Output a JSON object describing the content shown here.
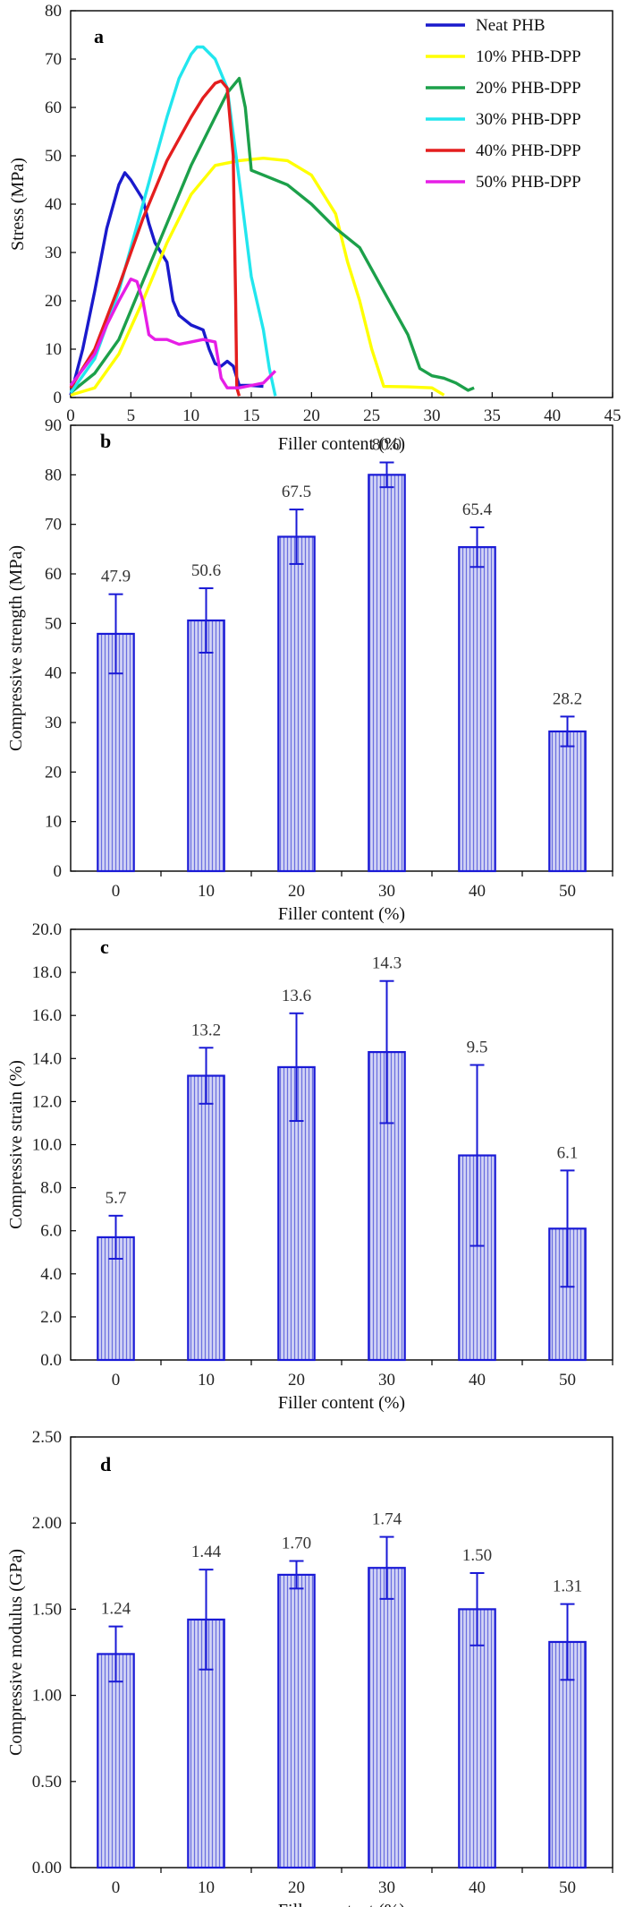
{
  "colors": {
    "bar_stroke": "#1a1ad6",
    "bar_fill": "#b9bdf0",
    "neat": "#1a1acc",
    "pct10": "#ffff00",
    "pct20": "#1ca04a",
    "pct30": "#22e6ee",
    "pct40": "#e41e1e",
    "pct50": "#e61ee6"
  },
  "chart_data": [
    {
      "type": "line",
      "panel": "a",
      "xlabel": "Filler content (%)",
      "ylabel": "Stress (MPa)",
      "xlim": [
        0,
        45
      ],
      "ylim": [
        0,
        80
      ],
      "xticks": [
        0,
        5,
        10,
        15,
        20,
        25,
        30,
        35,
        40,
        45
      ],
      "yticks": [
        0,
        10,
        20,
        30,
        40,
        50,
        60,
        70,
        80
      ],
      "legend_position": "top-right",
      "series": [
        {
          "name": "Neat PHB",
          "color": "#1a1acc",
          "points": [
            [
              0,
              0.5
            ],
            [
              1,
              10
            ],
            [
              2,
              22
            ],
            [
              3,
              35
            ],
            [
              4,
              44
            ],
            [
              4.5,
              46.5
            ],
            [
              5,
              45
            ],
            [
              6,
              41
            ],
            [
              6.5,
              36
            ],
            [
              7,
              32
            ],
            [
              8,
              28
            ],
            [
              8.5,
              20
            ],
            [
              9,
              17
            ],
            [
              10,
              15
            ],
            [
              11,
              14
            ],
            [
              11.5,
              10
            ],
            [
              12,
              7
            ],
            [
              12.5,
              6.5
            ],
            [
              13,
              7.5
            ],
            [
              13.5,
              6.5
            ],
            [
              14,
              2.5
            ],
            [
              15,
              2.5
            ],
            [
              16,
              2.3
            ]
          ]
        },
        {
          "name": "10% PHB-DPP",
          "color": "#ffff00",
          "points": [
            [
              0,
              0.5
            ],
            [
              2,
              2
            ],
            [
              4,
              9
            ],
            [
              6,
              20
            ],
            [
              8,
              32
            ],
            [
              10,
              42
            ],
            [
              12,
              48
            ],
            [
              14,
              49
            ],
            [
              16,
              49.5
            ],
            [
              18,
              49
            ],
            [
              20,
              46
            ],
            [
              22,
              38
            ],
            [
              23,
              28
            ],
            [
              24,
              20
            ],
            [
              25,
              10
            ],
            [
              26,
              2.3
            ],
            [
              28,
              2.2
            ],
            [
              30,
              2
            ],
            [
              31,
              0.5
            ]
          ]
        },
        {
          "name": "20% PHB-DPP",
          "color": "#1ca04a",
          "points": [
            [
              0,
              1
            ],
            [
              2,
              5
            ],
            [
              4,
              12
            ],
            [
              6,
              24
            ],
            [
              8,
              36
            ],
            [
              10,
              48
            ],
            [
              12,
              58
            ],
            [
              13,
              63
            ],
            [
              14,
              66
            ],
            [
              14.5,
              60
            ],
            [
              15,
              47
            ],
            [
              16,
              46
            ],
            [
              18,
              44
            ],
            [
              20,
              40
            ],
            [
              22,
              35
            ],
            [
              24,
              31
            ],
            [
              26,
              22
            ],
            [
              28,
              13
            ],
            [
              29,
              6
            ],
            [
              30,
              4.5
            ],
            [
              31,
              4
            ],
            [
              32,
              3
            ],
            [
              33,
              1.5
            ],
            [
              33.5,
              2
            ]
          ]
        },
        {
          "name": "30% PHB-DPP",
          "color": "#22e6ee",
          "points": [
            [
              0,
              1
            ],
            [
              2,
              8
            ],
            [
              4,
              22
            ],
            [
              6,
              40
            ],
            [
              8,
              58
            ],
            [
              9,
              66
            ],
            [
              10,
              71
            ],
            [
              10.5,
              72.5
            ],
            [
              11,
              72.5
            ],
            [
              12,
              70
            ],
            [
              13,
              64
            ],
            [
              14,
              45
            ],
            [
              15,
              25
            ],
            [
              16,
              14
            ],
            [
              16.5,
              6
            ],
            [
              17,
              0.3
            ]
          ]
        },
        {
          "name": "40% PHB-DPP",
          "color": "#e41e1e",
          "points": [
            [
              0,
              2
            ],
            [
              2,
              10
            ],
            [
              4,
              23
            ],
            [
              6,
              37
            ],
            [
              8,
              49
            ],
            [
              10,
              58
            ],
            [
              11,
              62
            ],
            [
              12,
              65
            ],
            [
              12.5,
              65.5
            ],
            [
              13,
              64
            ],
            [
              13.5,
              50
            ],
            [
              13.7,
              20
            ],
            [
              13.8,
              2
            ],
            [
              14,
              0.3
            ]
          ]
        },
        {
          "name": "50% PHB-DPP",
          "color": "#e61ee6",
          "points": [
            [
              0,
              2.5
            ],
            [
              2,
              9
            ],
            [
              3,
              15
            ],
            [
              4,
              20
            ],
            [
              5,
              24.5
            ],
            [
              5.5,
              24
            ],
            [
              6,
              20
            ],
            [
              6.5,
              13
            ],
            [
              7,
              12
            ],
            [
              8,
              12
            ],
            [
              9,
              11
            ],
            [
              10,
              11.5
            ],
            [
              11,
              12
            ],
            [
              12,
              11.5
            ],
            [
              12.5,
              4
            ],
            [
              13,
              2
            ],
            [
              14,
              2
            ],
            [
              15,
              2.5
            ],
            [
              16,
              3
            ],
            [
              17,
              5.5
            ]
          ]
        }
      ]
    },
    {
      "type": "bar",
      "panel": "b",
      "xlabel": "Filler content (%)",
      "ylabel": "Compressive strength (MPa)",
      "categories": [
        "0",
        "10",
        "20",
        "30",
        "40",
        "50"
      ],
      "values": [
        47.9,
        50.6,
        67.5,
        80.0,
        65.4,
        28.2
      ],
      "labels": [
        "47.9",
        "50.6",
        "67.5",
        "80.0",
        "65.4",
        "28.2"
      ],
      "errors": [
        8.0,
        6.5,
        5.5,
        2.5,
        4.0,
        3.0
      ],
      "ylim": [
        0,
        90
      ],
      "yticks": [
        "0",
        "10",
        "20",
        "30",
        "40",
        "50",
        "60",
        "70",
        "80",
        "90"
      ]
    },
    {
      "type": "bar",
      "panel": "c",
      "xlabel": "Filler content (%)",
      "ylabel": "Compressive strain (%)",
      "categories": [
        "0",
        "10",
        "20",
        "30",
        "40",
        "50"
      ],
      "values": [
        5.7,
        13.2,
        13.6,
        14.3,
        9.5,
        6.1
      ],
      "labels": [
        "5.7",
        "13.2",
        "13.6",
        "14.3",
        "9.5",
        "6.1"
      ],
      "errors": [
        1.0,
        1.3,
        2.5,
        3.3,
        4.2,
        2.7
      ],
      "ylim": [
        0,
        20
      ],
      "yticks": [
        "0.0",
        "2.0",
        "4.0",
        "6.0",
        "8.0",
        "10.0",
        "12.0",
        "14.0",
        "16.0",
        "18.0",
        "20.0"
      ]
    },
    {
      "type": "bar",
      "panel": "d",
      "xlabel": "Filler content (%)",
      "ylabel": "Compressive modulus (GPa)",
      "categories": [
        "0",
        "10",
        "20",
        "30",
        "40",
        "50"
      ],
      "values": [
        1.24,
        1.44,
        1.7,
        1.74,
        1.5,
        1.31
      ],
      "labels": [
        "1.24",
        "1.44",
        "1.70",
        "1.74",
        "1.50",
        "1.31"
      ],
      "errors": [
        0.16,
        0.29,
        0.08,
        0.18,
        0.21,
        0.22
      ],
      "ylim": [
        0,
        2.5
      ],
      "yticks": [
        "0.00",
        "0.50",
        "1.00",
        "1.50",
        "2.00",
        "2.50"
      ]
    }
  ]
}
